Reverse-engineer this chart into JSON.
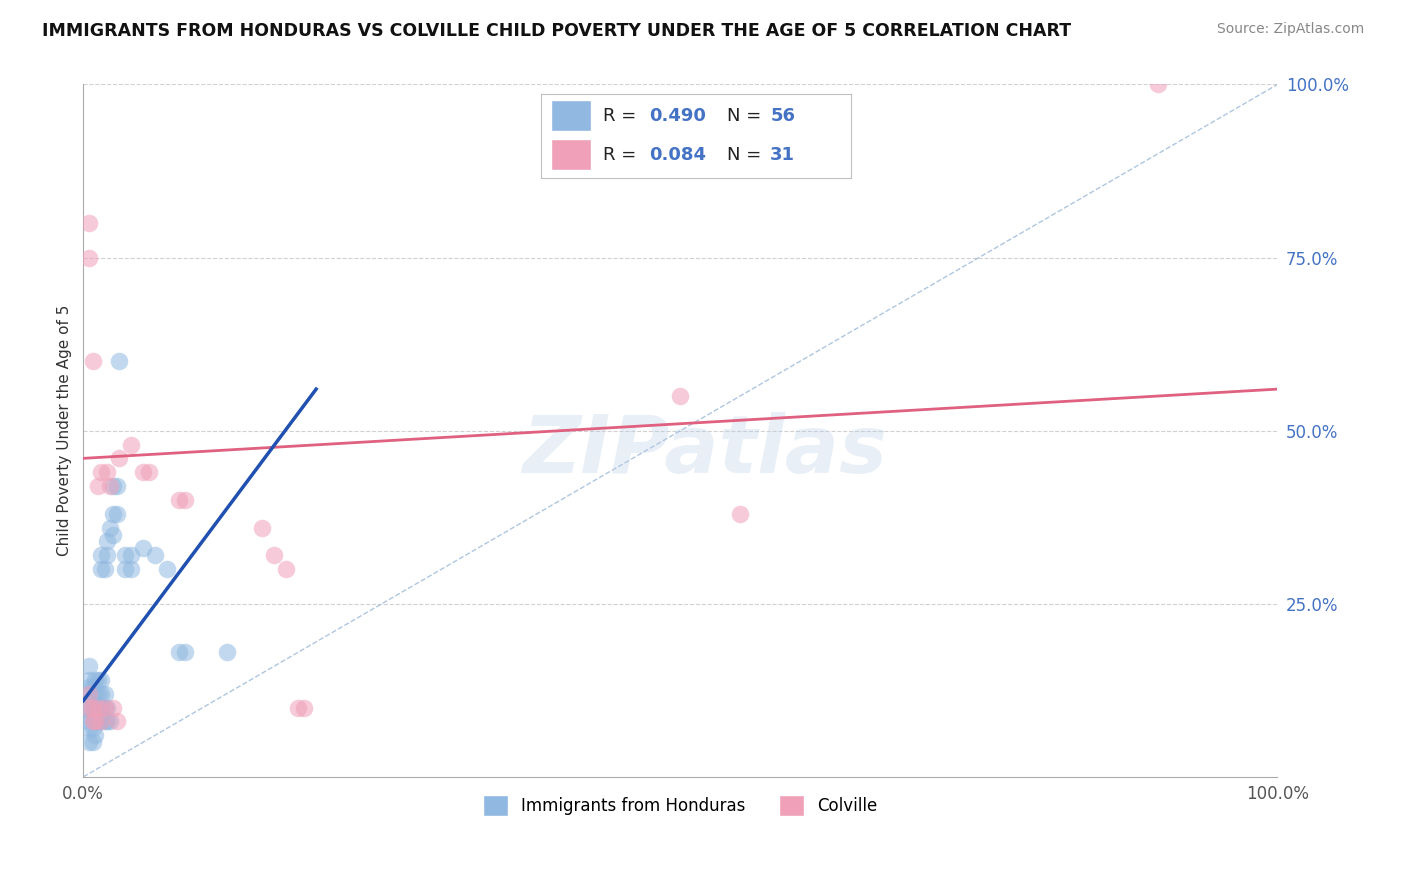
{
  "title": "IMMIGRANTS FROM HONDURAS VS COLVILLE CHILD POVERTY UNDER THE AGE OF 5 CORRELATION CHART",
  "source": "Source: ZipAtlas.com",
  "ylabel": "Child Poverty Under the Age of 5",
  "xlim": [
    0,
    1
  ],
  "ylim": [
    0,
    1
  ],
  "blue_color": "#90b8e0",
  "pink_color": "#f0a0b8",
  "line_blue": "#2050b0",
  "line_pink": "#e06080",
  "diag_color": "#9ab8d8",
  "watermark": "ZIPatlas",
  "watermark_color": "#b8cce4",
  "grid_color": "#cccccc",
  "ytick_positions": [
    0.25,
    0.5,
    0.75,
    1.0
  ],
  "ytick_labels": [
    "25.0%",
    "50.0%",
    "75.0%",
    "100.0%"
  ],
  "blue_scatter": [
    [
      0.005,
      0.05
    ],
    [
      0.005,
      0.07
    ],
    [
      0.005,
      0.08
    ],
    [
      0.005,
      0.09
    ],
    [
      0.005,
      0.1
    ],
    [
      0.005,
      0.11
    ],
    [
      0.005,
      0.12
    ],
    [
      0.005,
      0.13
    ],
    [
      0.005,
      0.14
    ],
    [
      0.005,
      0.16
    ],
    [
      0.008,
      0.05
    ],
    [
      0.008,
      0.07
    ],
    [
      0.008,
      0.09
    ],
    [
      0.008,
      0.11
    ],
    [
      0.008,
      0.13
    ],
    [
      0.01,
      0.06
    ],
    [
      0.01,
      0.08
    ],
    [
      0.01,
      0.1
    ],
    [
      0.01,
      0.12
    ],
    [
      0.01,
      0.14
    ],
    [
      0.012,
      0.08
    ],
    [
      0.012,
      0.1
    ],
    [
      0.012,
      0.12
    ],
    [
      0.012,
      0.14
    ],
    [
      0.015,
      0.08
    ],
    [
      0.015,
      0.1
    ],
    [
      0.015,
      0.12
    ],
    [
      0.015,
      0.14
    ],
    [
      0.015,
      0.3
    ],
    [
      0.015,
      0.32
    ],
    [
      0.018,
      0.08
    ],
    [
      0.018,
      0.1
    ],
    [
      0.018,
      0.12
    ],
    [
      0.018,
      0.3
    ],
    [
      0.02,
      0.08
    ],
    [
      0.02,
      0.1
    ],
    [
      0.02,
      0.32
    ],
    [
      0.02,
      0.34
    ],
    [
      0.022,
      0.08
    ],
    [
      0.022,
      0.36
    ],
    [
      0.025,
      0.35
    ],
    [
      0.025,
      0.38
    ],
    [
      0.025,
      0.42
    ],
    [
      0.028,
      0.38
    ],
    [
      0.028,
      0.42
    ],
    [
      0.03,
      0.6
    ],
    [
      0.035,
      0.3
    ],
    [
      0.035,
      0.32
    ],
    [
      0.04,
      0.3
    ],
    [
      0.04,
      0.32
    ],
    [
      0.05,
      0.33
    ],
    [
      0.06,
      0.32
    ],
    [
      0.07,
      0.3
    ],
    [
      0.08,
      0.18
    ],
    [
      0.085,
      0.18
    ],
    [
      0.12,
      0.18
    ]
  ],
  "pink_scatter": [
    [
      0.005,
      0.1
    ],
    [
      0.005,
      0.12
    ],
    [
      0.005,
      0.75
    ],
    [
      0.005,
      0.8
    ],
    [
      0.008,
      0.08
    ],
    [
      0.008,
      0.1
    ],
    [
      0.008,
      0.6
    ],
    [
      0.01,
      0.08
    ],
    [
      0.012,
      0.1
    ],
    [
      0.012,
      0.42
    ],
    [
      0.015,
      0.44
    ],
    [
      0.018,
      0.1
    ],
    [
      0.02,
      0.44
    ],
    [
      0.022,
      0.42
    ],
    [
      0.025,
      0.1
    ],
    [
      0.028,
      0.08
    ],
    [
      0.03,
      0.46
    ],
    [
      0.04,
      0.48
    ],
    [
      0.05,
      0.44
    ],
    [
      0.055,
      0.44
    ],
    [
      0.08,
      0.4
    ],
    [
      0.085,
      0.4
    ],
    [
      0.15,
      0.36
    ],
    [
      0.16,
      0.32
    ],
    [
      0.17,
      0.3
    ],
    [
      0.18,
      0.1
    ],
    [
      0.185,
      0.1
    ],
    [
      0.5,
      0.55
    ],
    [
      0.55,
      0.38
    ],
    [
      0.9,
      1.0
    ],
    [
      0.015,
      0.08
    ]
  ],
  "blue_line_x": [
    0.0,
    0.195
  ],
  "blue_line_y": [
    0.11,
    0.56
  ],
  "pink_line_x": [
    0.0,
    1.0
  ],
  "pink_line_y": [
    0.46,
    0.56
  ],
  "diag_line_x": [
    0.0,
    1.0
  ],
  "diag_line_y": [
    0.0,
    1.0
  ],
  "legend_R1": "0.490",
  "legend_N1": "56",
  "legend_R2": "0.084",
  "legend_N2": "31"
}
